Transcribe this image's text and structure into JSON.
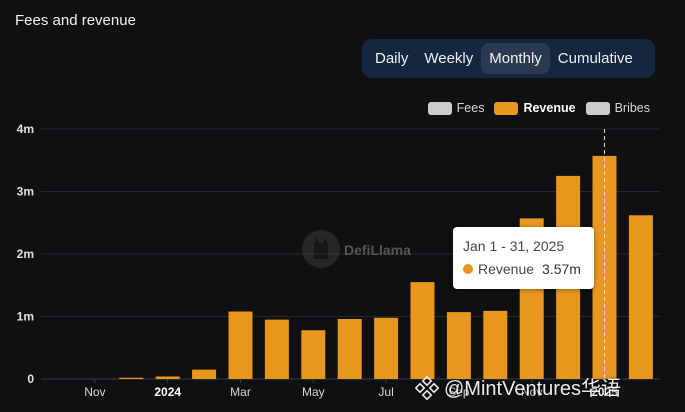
{
  "header": {
    "title": "Fees and revenue"
  },
  "tabs": [
    {
      "label": "Daily",
      "active": false
    },
    {
      "label": "Weekly",
      "active": false
    },
    {
      "label": "Monthly",
      "active": true
    },
    {
      "label": "Cumulative",
      "active": false
    }
  ],
  "legend": [
    {
      "label": "Fees",
      "color": "#cccccc",
      "active": false
    },
    {
      "label": "Revenue",
      "color": "#e8961e",
      "active": true
    },
    {
      "label": "Bribes",
      "color": "#cccccc",
      "active": false
    }
  ],
  "tooltip": {
    "title": "Jan 1 - 31, 2025",
    "series": "Revenue",
    "value": "3.57m",
    "color": "#e8961e"
  },
  "watermark": {
    "text": "DefiLlama"
  },
  "brand": {
    "text": "@MintVentures华语"
  },
  "chart_data": {
    "type": "bar",
    "series_name": "Revenue",
    "color": "#e8961e",
    "ylim": [
      0,
      4000000
    ],
    "yticks": [
      {
        "value": 0,
        "label": "0"
      },
      {
        "value": 1000000,
        "label": "1m"
      },
      {
        "value": 2000000,
        "label": "2m"
      },
      {
        "value": 3000000,
        "label": "3m"
      },
      {
        "value": 4000000,
        "label": "4m"
      }
    ],
    "categories": [
      "2023-10",
      "2023-11",
      "2023-12",
      "2024-01",
      "2024-02",
      "2024-03",
      "2024-04",
      "2024-05",
      "2024-06",
      "2024-07",
      "2024-08",
      "2024-09",
      "2024-10",
      "2024-11",
      "2024-12",
      "2025-01",
      "2025-02"
    ],
    "values": [
      0,
      0,
      20000,
      40000,
      150000,
      1080000,
      950000,
      780000,
      960000,
      980000,
      1550000,
      1070000,
      1090000,
      2570000,
      3250000,
      3570000,
      2620000
    ],
    "xticks": [
      {
        "index": 1,
        "label": "Nov",
        "bold": false
      },
      {
        "index": 3,
        "label": "2024",
        "bold": true
      },
      {
        "index": 5,
        "label": "Mar",
        "bold": false
      },
      {
        "index": 7,
        "label": "May",
        "bold": false
      },
      {
        "index": 9,
        "label": "Jul",
        "bold": false
      },
      {
        "index": 11,
        "label": "Sep",
        "bold": false
      },
      {
        "index": 13,
        "label": "Nov",
        "bold": false
      },
      {
        "index": 15,
        "label": "2025",
        "bold": true
      }
    ],
    "highlight_index": 15,
    "grid": true,
    "legend_position": "top-right"
  }
}
